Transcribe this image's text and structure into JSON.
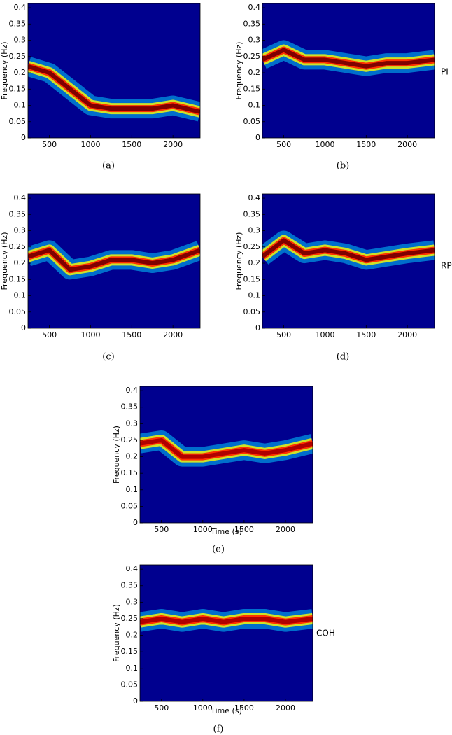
{
  "chart_data": [
    {
      "type": "line",
      "caption": "(a)",
      "ylabel": "Frequency (Hz)",
      "background": "#00008f",
      "color": "#800000",
      "x": [
        240,
        500,
        750,
        1000,
        1250,
        1500,
        1750,
        2000,
        2330
      ],
      "values": [
        0.22,
        0.2,
        0.15,
        0.1,
        0.09,
        0.09,
        0.09,
        0.1,
        0.08
      ],
      "xlim": [
        240,
        2330
      ],
      "ylim": [
        0,
        0.413
      ],
      "xticks": [
        500,
        1000,
        1500,
        2000
      ],
      "yticks": [
        0,
        0.05,
        0.1,
        0.15,
        0.2,
        0.25,
        0.3,
        0.35,
        0.4
      ]
    },
    {
      "type": "line",
      "caption": "(b)",
      "ylabel": "Frequency (Hz)",
      "annotation": "PI",
      "background": "#00008f",
      "color": "#800000",
      "x": [
        240,
        500,
        750,
        1000,
        1250,
        1500,
        1750,
        2000,
        2330
      ],
      "values": [
        0.24,
        0.27,
        0.24,
        0.24,
        0.23,
        0.22,
        0.23,
        0.23,
        0.24
      ],
      "xlim": [
        240,
        2330
      ],
      "ylim": [
        0,
        0.413
      ],
      "xticks": [
        500,
        1000,
        1500,
        2000
      ],
      "yticks": [
        0,
        0.05,
        0.1,
        0.15,
        0.2,
        0.25,
        0.3,
        0.35,
        0.4
      ]
    },
    {
      "type": "line",
      "caption": "(c)",
      "ylabel": "Frequency (Hz)",
      "background": "#00008f",
      "color": "#800000",
      "x": [
        240,
        500,
        750,
        1000,
        1250,
        1500,
        1750,
        2000,
        2330
      ],
      "values": [
        0.22,
        0.24,
        0.18,
        0.19,
        0.21,
        0.21,
        0.2,
        0.21,
        0.24
      ],
      "xlim": [
        240,
        2330
      ],
      "ylim": [
        0,
        0.413
      ],
      "xticks": [
        500,
        1000,
        1500,
        2000
      ],
      "yticks": [
        0,
        0.05,
        0.1,
        0.15,
        0.2,
        0.25,
        0.3,
        0.35,
        0.4
      ]
    },
    {
      "type": "line",
      "caption": "(d)",
      "ylabel": "Frequency (Hz)",
      "annotation": "RP",
      "background": "#00008f",
      "color": "#800000",
      "x": [
        240,
        500,
        750,
        1000,
        1250,
        1500,
        1750,
        2000,
        2330
      ],
      "values": [
        0.22,
        0.27,
        0.23,
        0.24,
        0.23,
        0.21,
        0.22,
        0.23,
        0.24
      ],
      "xlim": [
        240,
        2330
      ],
      "ylim": [
        0,
        0.413
      ],
      "xticks": [
        500,
        1000,
        1500,
        2000
      ],
      "yticks": [
        0,
        0.05,
        0.1,
        0.15,
        0.2,
        0.25,
        0.3,
        0.35,
        0.4
      ]
    },
    {
      "type": "line",
      "caption": "(e)",
      "ylabel": "Frequency (Hz)",
      "xlabel": "Time (s)",
      "background": "#00008f",
      "color": "#b00000",
      "x": [
        240,
        500,
        750,
        1000,
        1250,
        1500,
        1750,
        2000,
        2330
      ],
      "values": [
        0.24,
        0.25,
        0.2,
        0.2,
        0.21,
        0.22,
        0.21,
        0.22,
        0.24
      ],
      "xlim": [
        240,
        2330
      ],
      "ylim": [
        0,
        0.413
      ],
      "xticks": [
        500,
        1000,
        1500,
        2000
      ],
      "yticks": [
        0,
        0.05,
        0.1,
        0.15,
        0.2,
        0.25,
        0.3,
        0.35,
        0.4
      ]
    },
    {
      "type": "line",
      "caption": "(f)",
      "ylabel": "Frequency (Hz)",
      "xlabel": "Time (s)",
      "annotation": "COH",
      "background": "#00008f",
      "color": "#b00000",
      "x": [
        240,
        500,
        750,
        1000,
        1250,
        1500,
        1750,
        2000,
        2330
      ],
      "values": [
        0.24,
        0.25,
        0.24,
        0.25,
        0.24,
        0.25,
        0.25,
        0.24,
        0.25
      ],
      "xlim": [
        240,
        2330
      ],
      "ylim": [
        0,
        0.413
      ],
      "xticks": [
        500,
        1000,
        1500,
        2000
      ],
      "yticks": [
        0,
        0.05,
        0.1,
        0.15,
        0.2,
        0.25,
        0.3,
        0.35,
        0.4
      ]
    }
  ]
}
